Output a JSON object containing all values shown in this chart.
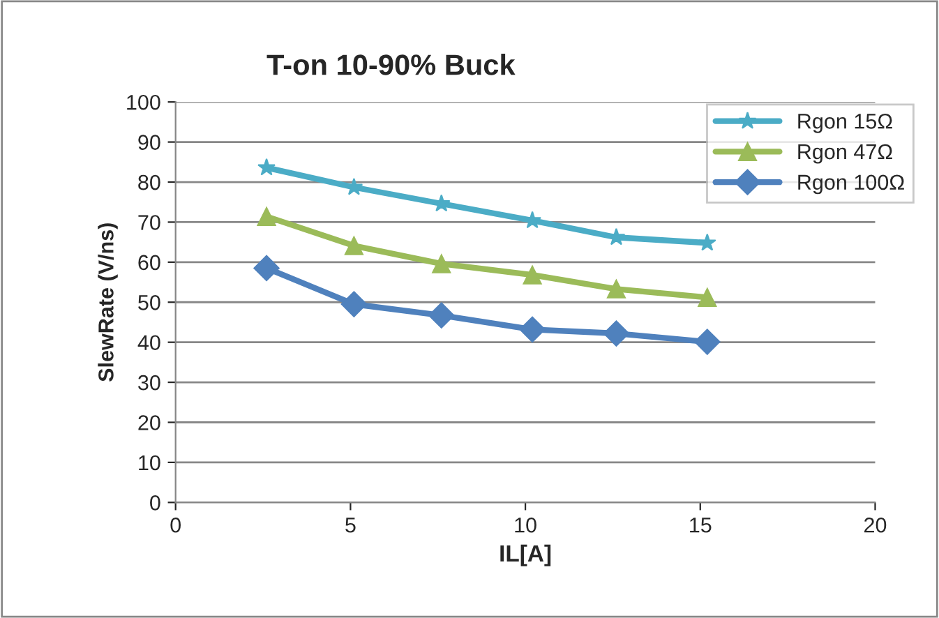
{
  "chart_data": {
    "type": "line",
    "title": "T-on 10-90% Buck",
    "xlabel": "IL[A]",
    "ylabel": "SlewRate (V/ns)",
    "x": [
      2.6,
      5.1,
      7.6,
      10.2,
      12.6,
      15.2
    ],
    "series": [
      {
        "name": "Rgon 15Ω",
        "color": "#4bacc6",
        "marker": "star",
        "values": [
          83.6,
          78.7,
          74.6,
          70.4,
          66.2,
          64.8
        ]
      },
      {
        "name": "Rgon 47Ω",
        "color": "#9bbb59",
        "marker": "triangle",
        "values": [
          71.4,
          64.1,
          59.6,
          56.8,
          53.3,
          51.2
        ]
      },
      {
        "name": "Rgon 100Ω",
        "color": "#4f81bd",
        "marker": "diamond",
        "values": [
          58.5,
          49.5,
          46.7,
          43.2,
          42.2,
          40.1
        ]
      }
    ],
    "xlim": [
      0,
      20
    ],
    "xticks": [
      0,
      5,
      10,
      15,
      20
    ],
    "ylim": [
      0,
      100
    ],
    "yticks": [
      0,
      10,
      20,
      30,
      40,
      50,
      60,
      70,
      80,
      90,
      100
    ],
    "grid": "y",
    "legend": "top right",
    "line_style": "solid"
  }
}
